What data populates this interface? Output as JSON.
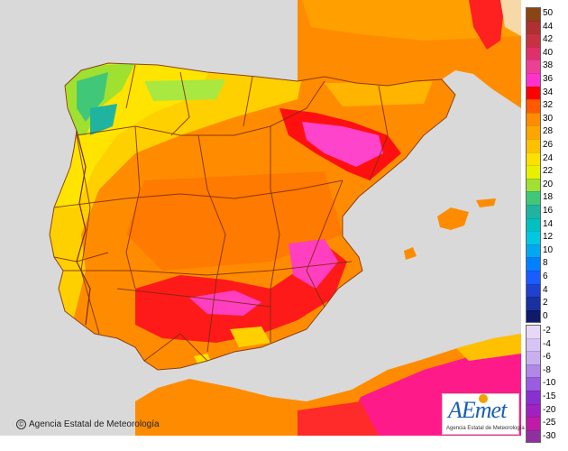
{
  "credit": {
    "symbol": "©",
    "text": "Agencia Estatal de Meteorología"
  },
  "logo": {
    "word": "AEmet",
    "subtitle": "Agencia Estatal de Meteorología"
  },
  "legend": {
    "items": [
      {
        "label": "50",
        "color": "#8b4513"
      },
      {
        "label": "44",
        "color": "#b03030"
      },
      {
        "label": "42",
        "color": "#c83240"
      },
      {
        "label": "40",
        "color": "#e0306a"
      },
      {
        "label": "38",
        "color": "#ee3f96"
      },
      {
        "label": "36",
        "color": "#ff33cc"
      },
      {
        "label": "34",
        "color": "#ff0000"
      },
      {
        "label": "32",
        "color": "#ff5a00"
      },
      {
        "label": "30",
        "color": "#ff8c00"
      },
      {
        "label": "28",
        "color": "#ffa500"
      },
      {
        "label": "26",
        "color": "#ffc000"
      },
      {
        "label": "24",
        "color": "#ffe000"
      },
      {
        "label": "22",
        "color": "#e8f000"
      },
      {
        "label": "20",
        "color": "#a0e030"
      },
      {
        "label": "18",
        "color": "#40c878"
      },
      {
        "label": "16",
        "color": "#20b4a0"
      },
      {
        "label": "14",
        "color": "#00c0c0"
      },
      {
        "label": "12",
        "color": "#00c8e0"
      },
      {
        "label": "10",
        "color": "#00a8f0"
      },
      {
        "label": "8",
        "color": "#0080ff"
      },
      {
        "label": "6",
        "color": "#1a5cff"
      },
      {
        "label": "4",
        "color": "#2040d0"
      },
      {
        "label": "2",
        "color": "#1830a0"
      },
      {
        "label": "0",
        "color": "#101a6a"
      },
      {
        "label": "-2",
        "color": "#e8d8f8"
      },
      {
        "label": "-4",
        "color": "#d8c4f4"
      },
      {
        "label": "-6",
        "color": "#c8b0ee"
      },
      {
        "label": "-8",
        "color": "#b088e8"
      },
      {
        "label": "-10",
        "color": "#9a5ce0"
      },
      {
        "label": "-15",
        "color": "#8a30d0"
      },
      {
        "label": "-20",
        "color": "#a020c0"
      },
      {
        "label": "-25",
        "color": "#c01aa8"
      },
      {
        "label": "-30",
        "color": "#9030a0"
      }
    ]
  },
  "map_colors": {
    "sea": "#d9d9d9",
    "border": "#7a2a0a",
    "region_base": "#ff8c00"
  }
}
